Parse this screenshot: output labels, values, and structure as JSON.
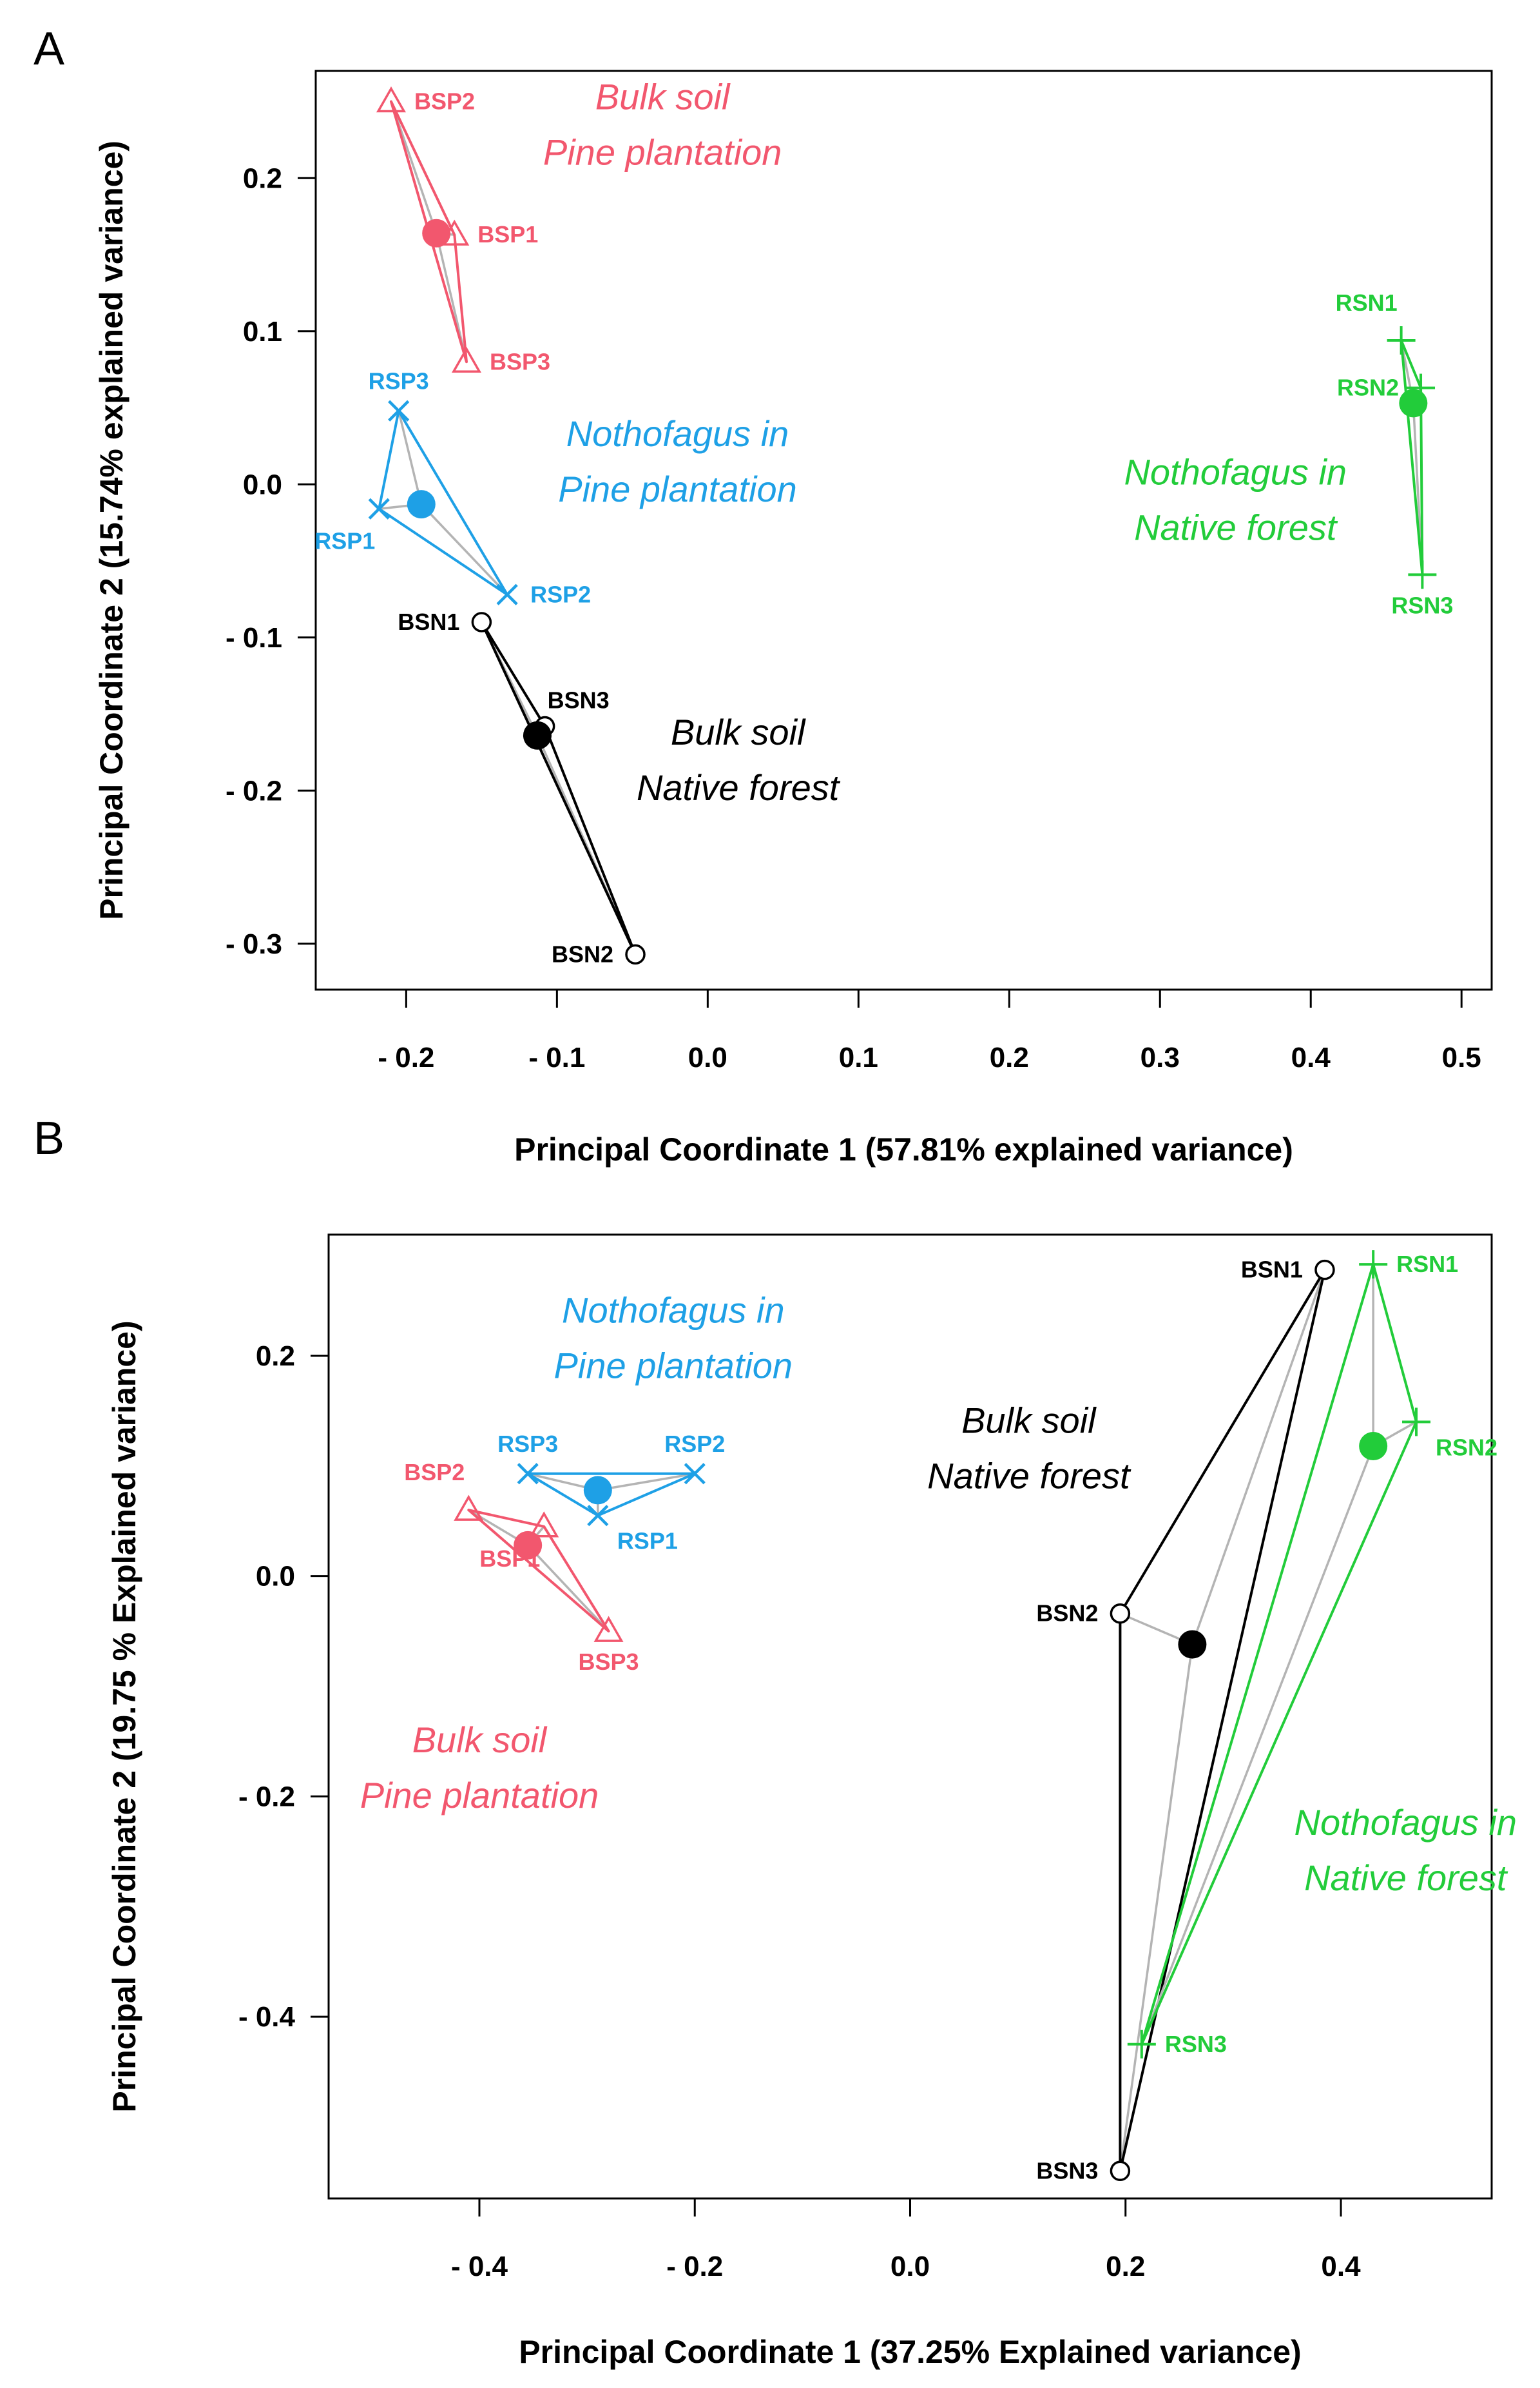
{
  "colors": {
    "pine_bulk": "#f2576e",
    "pine_nothofagus": "#1ea0e6",
    "native_bulk": "#000000",
    "native_nothofagus": "#22cc3a",
    "spoke": "#b4b4b4"
  },
  "chart_data": [
    {
      "panel": "A",
      "type": "scatter",
      "xlabel": "Principal Coordinate 1 (57.81% explained variance)",
      "ylabel": "Principal Coordinate 2 (15.74% explained variance)",
      "xlim": [
        -0.26,
        0.52
      ],
      "ylim": [
        -0.33,
        0.27
      ],
      "x_ticks": [
        {
          "value": -0.2,
          "label": "- 0.2"
        },
        {
          "value": -0.1,
          "label": "- 0.1"
        },
        {
          "value": 0.0,
          "label": "0.0"
        },
        {
          "value": 0.1,
          "label": "0.1"
        },
        {
          "value": 0.2,
          "label": "0.2"
        },
        {
          "value": 0.3,
          "label": "0.3"
        },
        {
          "value": 0.4,
          "label": "0.4"
        },
        {
          "value": 0.5,
          "label": "0.5"
        }
      ],
      "y_ticks": [
        {
          "value": 0.2,
          "label": "0.2"
        },
        {
          "value": 0.1,
          "label": "0.1"
        },
        {
          "value": 0.0,
          "label": "0.0"
        },
        {
          "value": -0.1,
          "label": "- 0.1"
        },
        {
          "value": -0.2,
          "label": "- 0.2"
        },
        {
          "value": -0.3,
          "label": "- 0.3"
        }
      ],
      "groups": [
        {
          "key": "bsp",
          "color": "pine_bulk",
          "marker": "triangle",
          "label_lines": [
            "Bulk soil",
            "Pine plantation"
          ],
          "label_pos": [
            -0.03,
            0.245
          ],
          "centroid": [
            -0.18,
            0.164
          ],
          "points": [
            {
              "name": "BSP2",
              "x": -0.21,
              "y": 0.25,
              "label_side": "right"
            },
            {
              "name": "BSP1",
              "x": -0.168,
              "y": 0.163,
              "label_side": "right"
            },
            {
              "name": "BSP3",
              "x": -0.16,
              "y": 0.08,
              "label_side": "right"
            }
          ]
        },
        {
          "key": "rsp",
          "color": "pine_nothofagus",
          "marker": "x",
          "label_lines": [
            "Nothofagus in",
            "Pine plantation"
          ],
          "label_pos": [
            -0.02,
            0.025
          ],
          "centroid": [
            -0.19,
            -0.013
          ],
          "points": [
            {
              "name": "RSP3",
              "x": -0.205,
              "y": 0.048,
              "label_side": "above"
            },
            {
              "name": "RSP1",
              "x": -0.218,
              "y": -0.016,
              "label_side": "below-left"
            },
            {
              "name": "RSP2",
              "x": -0.133,
              "y": -0.072,
              "label_side": "right"
            }
          ]
        },
        {
          "key": "bsn",
          "color": "native_bulk",
          "marker": "circle",
          "label_lines": [
            "Bulk soil",
            "Native forest"
          ],
          "label_pos": [
            0.02,
            -0.17
          ],
          "centroid": [
            -0.113,
            -0.164
          ],
          "points": [
            {
              "name": "BSN1",
              "x": -0.15,
              "y": -0.09,
              "label_side": "left"
            },
            {
              "name": "BSN3",
              "x": -0.108,
              "y": -0.158,
              "label_side": "above-right"
            },
            {
              "name": "BSN2",
              "x": -0.048,
              "y": -0.307,
              "label_side": "left"
            }
          ]
        },
        {
          "key": "rsn",
          "color": "native_nothofagus",
          "marker": "plus",
          "label_lines": [
            "Nothofagus in",
            "Native forest"
          ],
          "label_pos": [
            0.35,
            0.0
          ],
          "centroid": [
            0.468,
            0.053
          ],
          "points": [
            {
              "name": "RSN1",
              "x": 0.46,
              "y": 0.094,
              "label_side": "above-left"
            },
            {
              "name": "RSN2",
              "x": 0.473,
              "y": 0.063,
              "label_side": "left"
            },
            {
              "name": "RSN3",
              "x": 0.474,
              "y": -0.059,
              "label_side": "below"
            }
          ]
        }
      ]
    },
    {
      "panel": "B",
      "type": "scatter",
      "xlabel": "Principal Coordinate 1 (37.25% Explained variance)",
      "ylabel": "Principal Coordinate 2 (19.75 % Explained variance)",
      "xlim": [
        -0.54,
        0.54
      ],
      "ylim": [
        -0.565,
        0.31
      ],
      "x_ticks": [
        {
          "value": -0.4,
          "label": "- 0.4"
        },
        {
          "value": -0.2,
          "label": "- 0.2"
        },
        {
          "value": 0.0,
          "label": "0.0"
        },
        {
          "value": 0.2,
          "label": "0.2"
        },
        {
          "value": 0.4,
          "label": "0.4"
        }
      ],
      "y_ticks": [
        {
          "value": 0.2,
          "label": "0.2"
        },
        {
          "value": 0.0,
          "label": "0.0"
        },
        {
          "value": -0.2,
          "label": "- 0.2"
        },
        {
          "value": -0.4,
          "label": "- 0.4"
        }
      ],
      "groups": [
        {
          "key": "bsp",
          "color": "pine_bulk",
          "marker": "triangle",
          "label_lines": [
            "Bulk soil",
            "Pine plantation"
          ],
          "label_pos": [
            -0.4,
            -0.16
          ],
          "centroid": [
            -0.355,
            0.028
          ],
          "points": [
            {
              "name": "BSP2",
              "x": -0.41,
              "y": 0.06,
              "label_side": "above-left"
            },
            {
              "name": "BSP1",
              "x": -0.34,
              "y": 0.045,
              "label_side": "below-left"
            },
            {
              "name": "BSP3",
              "x": -0.28,
              "y": -0.05,
              "label_side": "below"
            }
          ]
        },
        {
          "key": "rsp",
          "color": "pine_nothofagus",
          "marker": "x",
          "label_lines": [
            "Nothofagus in",
            "Pine plantation"
          ],
          "label_pos": [
            -0.22,
            0.23
          ],
          "centroid": [
            -0.29,
            0.078
          ],
          "points": [
            {
              "name": "RSP3",
              "x": -0.355,
              "y": 0.093,
              "label_side": "above"
            },
            {
              "name": "RSP2",
              "x": -0.2,
              "y": 0.093,
              "label_side": "above"
            },
            {
              "name": "RSP1",
              "x": -0.29,
              "y": 0.055,
              "label_side": "below-right"
            }
          ]
        },
        {
          "key": "bsn",
          "color": "native_bulk",
          "marker": "circle",
          "label_lines": [
            "Bulk soil",
            "Native forest"
          ],
          "label_pos": [
            0.11,
            0.13
          ],
          "centroid": [
            0.262,
            -0.062
          ],
          "points": [
            {
              "name": "BSN1",
              "x": 0.385,
              "y": 0.278,
              "label_side": "left"
            },
            {
              "name": "BSN2",
              "x": 0.195,
              "y": -0.034,
              "label_side": "left"
            },
            {
              "name": "BSN3",
              "x": 0.195,
              "y": -0.54,
              "label_side": "left"
            }
          ]
        },
        {
          "key": "rsn",
          "color": "native_nothofagus",
          "marker": "plus",
          "label_lines": [
            "Nothofagus in",
            "Native forest"
          ],
          "label_pos": [
            0.46,
            -0.235
          ],
          "centroid": [
            0.43,
            0.118
          ],
          "points": [
            {
              "name": "RSN1",
              "x": 0.43,
              "y": 0.283,
              "label_side": "right"
            },
            {
              "name": "RSN2",
              "x": 0.47,
              "y": 0.14,
              "label_side": "below-right"
            },
            {
              "name": "RSN3",
              "x": 0.215,
              "y": -0.425,
              "label_side": "right"
            }
          ]
        }
      ]
    }
  ]
}
